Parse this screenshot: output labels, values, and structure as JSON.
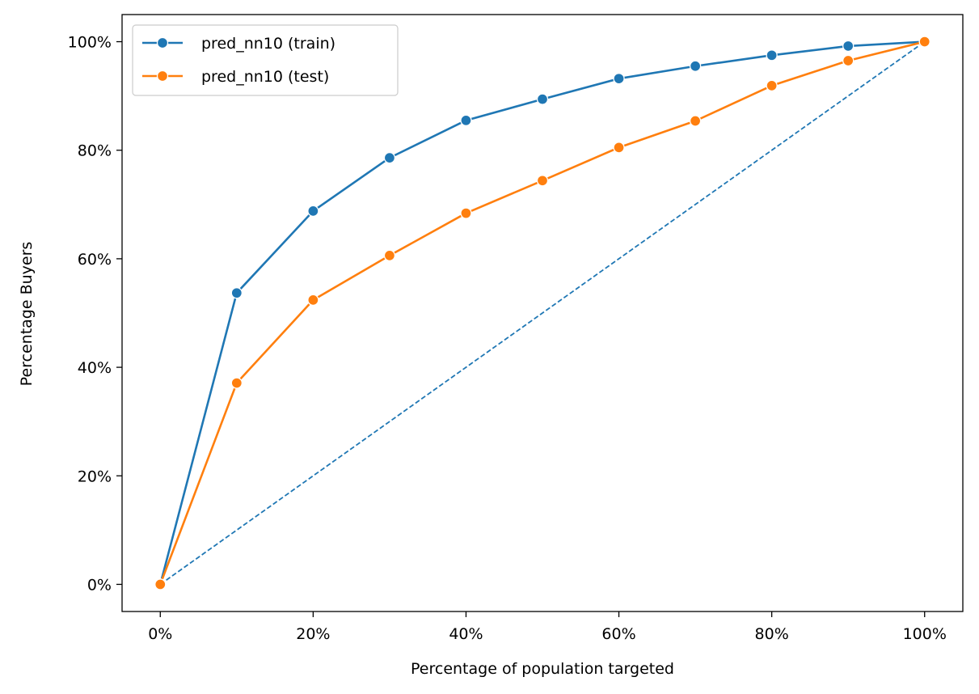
{
  "chart_data": {
    "type": "line",
    "xlabel": "Percentage of population targeted",
    "ylabel": "Percentage Buyers",
    "xlim": [
      -0.05,
      1.05
    ],
    "ylim": [
      -0.05,
      1.05
    ],
    "x_ticks": [
      0,
      0.2,
      0.4,
      0.6,
      0.8,
      1.0
    ],
    "x_tick_labels": [
      "0%",
      "20%",
      "40%",
      "60%",
      "80%",
      "100%"
    ],
    "y_ticks": [
      0,
      0.2,
      0.4,
      0.6,
      0.8,
      1.0
    ],
    "y_tick_labels": [
      "0%",
      "20%",
      "40%",
      "60%",
      "80%",
      "100%"
    ],
    "grid": false,
    "legend_position": "top-left",
    "x": [
      0,
      0.1,
      0.2,
      0.3,
      0.4,
      0.5,
      0.6,
      0.7,
      0.8,
      0.9,
      1.0
    ],
    "series": [
      {
        "name": "pred_nn10 (train)",
        "color": "#1f77b4",
        "values": [
          0,
          0.537,
          0.688,
          0.786,
          0.855,
          0.894,
          0.932,
          0.955,
          0.975,
          0.992,
          1.0
        ]
      },
      {
        "name": "pred_nn10 (test)",
        "color": "#ff7f0e",
        "values": [
          0,
          0.371,
          0.524,
          0.606,
          0.684,
          0.744,
          0.805,
          0.854,
          0.919,
          0.965,
          1.0
        ]
      }
    ],
    "reference_line": {
      "x": [
        0,
        1.0
      ],
      "y": [
        0,
        1.0
      ],
      "style": "dashed",
      "color": "#1f77b4"
    }
  }
}
